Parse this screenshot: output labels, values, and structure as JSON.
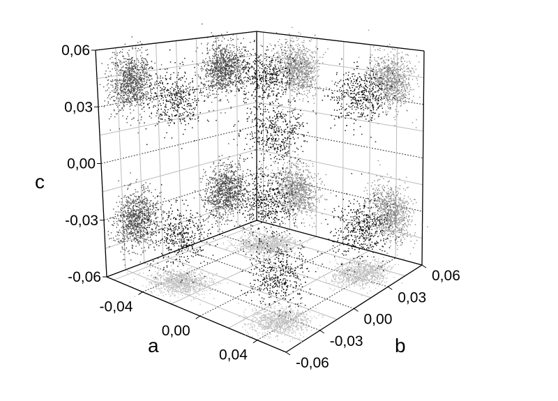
{
  "chart_data": {
    "type": "scatter",
    "projection": "3d",
    "title": "",
    "axes": {
      "a": {
        "label": "a",
        "range": [
          -0.065,
          0.06
        ],
        "ticks": [
          "-0,04",
          "0,00",
          "0,04"
        ],
        "tick_values": [
          -0.04,
          0.0,
          0.04
        ]
      },
      "b": {
        "label": "b",
        "range": [
          -0.06,
          0.06
        ],
        "ticks": [
          "-0,06",
          "-0,03",
          "0,00",
          "0,03",
          "0,06"
        ],
        "tick_values": [
          -0.06,
          -0.03,
          0.0,
          0.03,
          0.06
        ]
      },
      "c": {
        "label": "c",
        "range": [
          -0.06,
          0.06
        ],
        "ticks": [
          "-0,06",
          "-0,03",
          "0,00",
          "0,03",
          "0,06"
        ],
        "tick_values": [
          -0.06,
          -0.03,
          0.0,
          0.03,
          0.06
        ]
      }
    },
    "grid": true,
    "clusters": [
      {
        "center": [
          -0.035,
          -0.035,
          0.04
        ],
        "spread": 0.008
      },
      {
        "center": [
          0.035,
          -0.035,
          0.04
        ],
        "spread": 0.008
      },
      {
        "center": [
          -0.035,
          0.035,
          0.04
        ],
        "spread": 0.008
      },
      {
        "center": [
          0.035,
          0.035,
          0.04
        ],
        "spread": 0.008
      },
      {
        "center": [
          -0.035,
          -0.035,
          -0.035
        ],
        "spread": 0.008
      },
      {
        "center": [
          0.035,
          -0.035,
          -0.035
        ],
        "spread": 0.008
      },
      {
        "center": [
          -0.035,
          0.035,
          -0.035
        ],
        "spread": 0.008
      },
      {
        "center": [
          0.035,
          0.035,
          -0.035
        ],
        "spread": 0.008
      }
    ],
    "colors": {
      "points_3d": "#000000",
      "projection_bc_wall": "#4a4a4a",
      "projection_ac_wall": "#8a8a8a",
      "projection_ab_floor": "#c0c0c0"
    }
  }
}
